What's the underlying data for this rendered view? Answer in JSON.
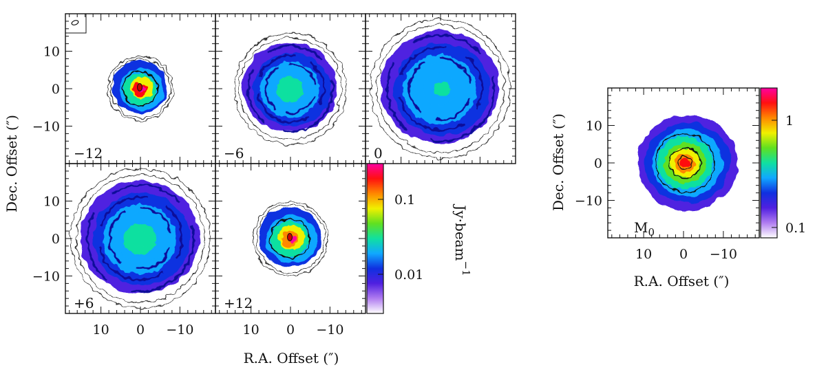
{
  "figure": {
    "ylabel": "Dec. Offset (″)",
    "xlabel": "R.A. Offset (″)"
  },
  "chart_data": [
    {
      "type": "heatmap",
      "subtype": "channel-maps",
      "panels": [
        {
          "label": "−12",
          "velocity": -12,
          "extent": 7,
          "peak": 0.28,
          "ring": false
        },
        {
          "label": "−6",
          "velocity": -6,
          "extent": 12,
          "peak": 0.03,
          "ring": true
        },
        {
          "label": "0",
          "velocity": 0,
          "extent": 15,
          "peak": 0.025,
          "ring": true
        },
        {
          "label": "+6",
          "velocity": 6,
          "extent": 15,
          "peak": 0.03,
          "ring": true
        },
        {
          "label": "+12",
          "velocity": 12,
          "extent": 8,
          "peak": 0.25,
          "ring": false
        }
      ],
      "x_ticks": [
        10,
        0,
        -10
      ],
      "x_tick_labels": [
        "10",
        "0",
        "−10"
      ],
      "y_ticks": [
        10,
        0,
        -10
      ],
      "y_tick_labels": [
        "10",
        "0",
        "−10"
      ],
      "xlim": [
        19,
        -19
      ],
      "ylim": [
        -20,
        20
      ],
      "colorbar": {
        "label": "Jy·beam",
        "label_superscript": "−1",
        "ticks": [
          0.1,
          0.01
        ],
        "tick_labels": [
          "0.1",
          "0.01"
        ],
        "range": [
          0.003,
          0.3
        ],
        "scale": "log"
      },
      "colormap": [
        "#ffffff",
        "#b07cf0",
        "#5020e0",
        "#1030e0",
        "#10a8ff",
        "#10e0a0",
        "#60e020",
        "#f0f000",
        "#ff8800",
        "#ff1010",
        "#ff00a0"
      ]
    },
    {
      "type": "heatmap",
      "subtype": "moment-0",
      "label": "M",
      "label_subscript": "0",
      "extent": 12,
      "peak": 1.6,
      "x_ticks": [
        10,
        0,
        -10
      ],
      "x_tick_labels": [
        "10",
        "0",
        "−10"
      ],
      "y_ticks": [
        10,
        0,
        -10
      ],
      "y_tick_labels": [
        "10",
        "0",
        "−10"
      ],
      "xlim": [
        19,
        -19
      ],
      "ylim": [
        -20,
        20
      ],
      "colorbar": {
        "ticks": [
          1,
          0.1
        ],
        "tick_labels": [
          "1",
          "0.1"
        ],
        "range": [
          0.08,
          2
        ],
        "scale": "log"
      }
    }
  ]
}
